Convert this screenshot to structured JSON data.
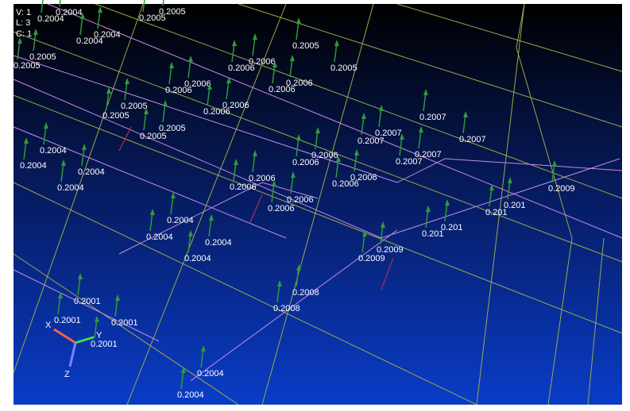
{
  "status": {
    "view": "V: 1",
    "load": "L: 3",
    "case": "C: 1"
  },
  "labels": [
    "0.2004",
    "0.2004",
    "0.2005",
    "0.2005",
    "0.2004",
    "0.2004",
    "0.2005",
    "0.2005",
    "0.2005",
    "0.2005",
    "0.2006",
    "0.2006",
    "0.2006",
    "0.2006",
    "0.2006",
    "0.2006",
    "0.2006",
    "0.2006",
    "0.2005",
    "0.2005",
    "0.2005",
    "0.2005",
    "0.2007",
    "0.2007",
    "0.2007",
    "0.2007",
    "0.2007",
    "0.2007",
    "0.2004",
    "0.2004",
    "0.2004",
    "0.2004",
    "0.2006",
    "0.2006",
    "0.2006",
    "0.2006",
    "0.2006",
    "0.2006",
    "0.2006",
    "0.2006",
    "0.2009",
    "0.201",
    "0.201",
    "0.2004",
    "0.2004",
    "0.2004",
    "0.2004",
    "0.201",
    "0.201",
    "0.2009",
    "0.2009",
    "0.2008",
    "0.2008",
    "0.2001",
    "0.2001",
    "0.2001",
    "0.2001",
    "0.2004",
    "0.2004"
  ],
  "axes": {
    "x": "X",
    "y": "Y",
    "z": "Z"
  }
}
